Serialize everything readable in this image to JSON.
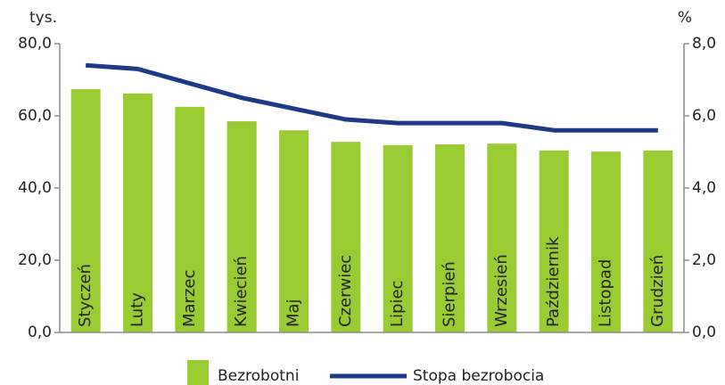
{
  "chart_data": {
    "type": "bar",
    "y_axis_label": "tys.",
    "y2_axis_label": "%",
    "categories": [
      "Styczeń",
      "Luty",
      "Marzec",
      "Kwiecień",
      "Maj",
      "Czerwiec",
      "Lipiec",
      "Sierpień",
      "Wrzesień",
      "Październik",
      "Listopad",
      "Grudzień"
    ],
    "series": [
      {
        "name": "Bezrobotni",
        "type": "bar",
        "color": "#99cc33",
        "axis": "y",
        "values": [
          67.4,
          66.2,
          62.5,
          58.5,
          56.0,
          52.8,
          51.9,
          52.1,
          52.3,
          50.4,
          50.1,
          50.4
        ]
      },
      {
        "name": "Stopa bezrobocia",
        "type": "line",
        "color": "#1c3a87",
        "axis": "y2",
        "values": [
          7.4,
          7.3,
          6.9,
          6.5,
          6.2,
          5.9,
          5.8,
          5.8,
          5.8,
          5.6,
          5.6,
          5.6
        ]
      }
    ],
    "ylim": [
      0,
      80
    ],
    "yticks": [
      {
        "value": 0,
        "label": "0,0"
      },
      {
        "value": 20,
        "label": "20,0"
      },
      {
        "value": 40,
        "label": "40,0"
      },
      {
        "value": 60,
        "label": "60,0"
      },
      {
        "value": 80,
        "label": "80,0"
      }
    ],
    "y2lim": [
      0,
      8
    ],
    "y2ticks": [
      {
        "value": 0,
        "label": "0,0"
      },
      {
        "value": 2,
        "label": "2,0"
      },
      {
        "value": 4,
        "label": "4,0"
      },
      {
        "value": 6,
        "label": "6,0"
      },
      {
        "value": 8,
        "label": "8,0"
      }
    ],
    "legend": "bottom"
  }
}
